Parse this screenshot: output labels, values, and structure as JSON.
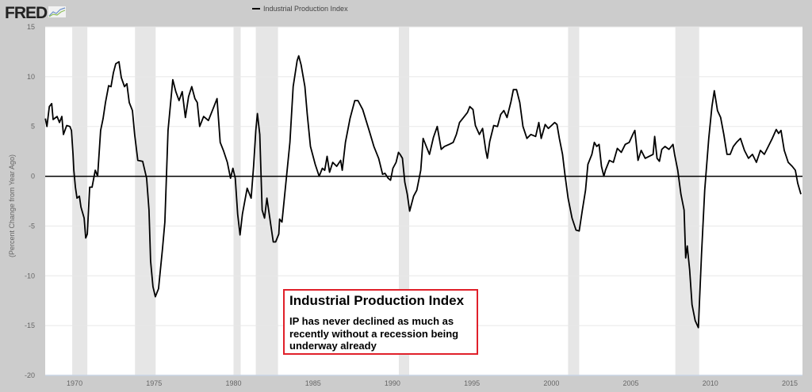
{
  "header": {
    "logo": "FRED",
    "logo_icon": "line-chart-icon"
  },
  "chart_data": {
    "type": "line",
    "title": "",
    "ylabel": "(Percent Change from Year Ago)",
    "xlabel": "",
    "xlim": [
      1968.15,
      2015.8
    ],
    "ylim": [
      -20,
      15
    ],
    "yticks": [
      -20,
      -15,
      -10,
      -5,
      0,
      5,
      10,
      15
    ],
    "xticks": [
      1970,
      1975,
      1980,
      1985,
      1990,
      1995,
      2000,
      2005,
      2010,
      2015
    ],
    "grid": true,
    "legend_placement": "top-center",
    "colors": {
      "line": "#000000",
      "recession": "#e6e6e6",
      "background": "#cccccc",
      "plot": "#ffffff",
      "annotation_border": "#e0202a"
    },
    "recessions": [
      [
        1969.85,
        1970.8
      ],
      [
        1973.8,
        1975.1
      ],
      [
        1980.0,
        1980.45
      ],
      [
        1981.4,
        1982.8
      ],
      [
        1990.4,
        1991.05
      ],
      [
        2001.05,
        2001.75
      ],
      [
        2007.8,
        2009.3
      ]
    ],
    "series": [
      {
        "name": "Industrial Production Index",
        "points": [
          [
            1968.16,
            5.8
          ],
          [
            1968.26,
            5.0
          ],
          [
            1968.41,
            7.0
          ],
          [
            1968.56,
            7.3
          ],
          [
            1968.65,
            5.7
          ],
          [
            1968.9,
            6.0
          ],
          [
            1969.05,
            5.4
          ],
          [
            1969.2,
            6.0
          ],
          [
            1969.3,
            4.2
          ],
          [
            1969.5,
            5.1
          ],
          [
            1969.7,
            5.0
          ],
          [
            1969.8,
            4.6
          ],
          [
            1969.9,
            2.2
          ],
          [
            1969.95,
            0.6
          ],
          [
            1970.05,
            -1.1
          ],
          [
            1970.15,
            -2.2
          ],
          [
            1970.3,
            -2.0
          ],
          [
            1970.4,
            -3.1
          ],
          [
            1970.6,
            -4.2
          ],
          [
            1970.7,
            -6.2
          ],
          [
            1970.8,
            -5.8
          ],
          [
            1970.95,
            -1.1
          ],
          [
            1971.1,
            -1.1
          ],
          [
            1971.3,
            0.6
          ],
          [
            1971.45,
            0
          ],
          [
            1971.64,
            4.6
          ],
          [
            1971.79,
            5.8
          ],
          [
            1971.94,
            7.4
          ],
          [
            1972.14,
            9.1
          ],
          [
            1972.29,
            9.0
          ],
          [
            1972.44,
            10.4
          ],
          [
            1972.59,
            11.3
          ],
          [
            1972.79,
            11.5
          ],
          [
            1972.94,
            9.9
          ],
          [
            1973.14,
            9.0
          ],
          [
            1973.29,
            9.3
          ],
          [
            1973.44,
            7.4
          ],
          [
            1973.64,
            6.6
          ],
          [
            1973.78,
            4.2
          ],
          [
            1973.98,
            1.6
          ],
          [
            1974.28,
            1.5
          ],
          [
            1974.53,
            -0.2
          ],
          [
            1974.68,
            -3.4
          ],
          [
            1974.78,
            -8.5
          ],
          [
            1974.93,
            -11.1
          ],
          [
            1975.08,
            -12.1
          ],
          [
            1975.28,
            -11.3
          ],
          [
            1975.53,
            -7.3
          ],
          [
            1975.68,
            -4.6
          ],
          [
            1975.88,
            4.6
          ],
          [
            1976.18,
            9.7
          ],
          [
            1976.37,
            8.5
          ],
          [
            1976.57,
            7.6
          ],
          [
            1976.77,
            8.5
          ],
          [
            1976.97,
            5.9
          ],
          [
            1977.17,
            8.0
          ],
          [
            1977.37,
            9.0
          ],
          [
            1977.57,
            7.8
          ],
          [
            1977.72,
            7.4
          ],
          [
            1977.87,
            5.0
          ],
          [
            1978.12,
            6.0
          ],
          [
            1978.42,
            5.6
          ],
          [
            1978.77,
            7.0
          ],
          [
            1978.96,
            7.8
          ],
          [
            1979.16,
            3.4
          ],
          [
            1979.36,
            2.6
          ],
          [
            1979.61,
            1.4
          ],
          [
            1979.81,
            -0.2
          ],
          [
            1979.96,
            0.8
          ],
          [
            1980.11,
            -0.2
          ],
          [
            1980.26,
            -3.8
          ],
          [
            1980.41,
            -5.9
          ],
          [
            1980.56,
            -3.8
          ],
          [
            1980.86,
            -1.2
          ],
          [
            1981.11,
            -2.2
          ],
          [
            1981.26,
            1.0
          ],
          [
            1981.4,
            4.6
          ],
          [
            1981.5,
            6.3
          ],
          [
            1981.65,
            4.2
          ],
          [
            1981.8,
            -3.4
          ],
          [
            1981.95,
            -4.2
          ],
          [
            1982.1,
            -2.2
          ],
          [
            1982.5,
            -6.6
          ],
          [
            1982.65,
            -6.6
          ],
          [
            1982.85,
            -5.8
          ],
          [
            1982.9,
            -4.3
          ],
          [
            1983.05,
            -4.6
          ],
          [
            1983.35,
            0.2
          ],
          [
            1983.55,
            3.4
          ],
          [
            1983.75,
            9.0
          ],
          [
            1984.0,
            11.6
          ],
          [
            1984.1,
            12.1
          ],
          [
            1984.25,
            11.2
          ],
          [
            1984.49,
            9.0
          ],
          [
            1984.64,
            6.2
          ],
          [
            1984.84,
            3.0
          ],
          [
            1985.14,
            1.2
          ],
          [
            1985.39,
            0
          ],
          [
            1985.59,
            0.8
          ],
          [
            1985.74,
            0.6
          ],
          [
            1985.89,
            2.0
          ],
          [
            1986.04,
            0.4
          ],
          [
            1986.24,
            1.4
          ],
          [
            1986.49,
            1.0
          ],
          [
            1986.74,
            1.6
          ],
          [
            1986.84,
            0.6
          ],
          [
            1987.04,
            3.4
          ],
          [
            1987.33,
            5.8
          ],
          [
            1987.63,
            7.6
          ],
          [
            1987.83,
            7.6
          ],
          [
            1988.13,
            6.7
          ],
          [
            1988.53,
            4.6
          ],
          [
            1988.83,
            3.0
          ],
          [
            1989.13,
            1.8
          ],
          [
            1989.38,
            0.2
          ],
          [
            1989.53,
            0.3
          ],
          [
            1989.73,
            -0.2
          ],
          [
            1989.88,
            -0.4
          ],
          [
            1990.03,
            0.8
          ],
          [
            1990.23,
            1.4
          ],
          [
            1990.38,
            2.4
          ],
          [
            1990.48,
            2.2
          ],
          [
            1990.63,
            1.8
          ],
          [
            1990.78,
            -0.6
          ],
          [
            1990.93,
            -1.8
          ],
          [
            1991.08,
            -3.5
          ],
          [
            1991.33,
            -2.0
          ],
          [
            1991.53,
            -1.4
          ],
          [
            1991.78,
            0.6
          ],
          [
            1991.93,
            3.8
          ],
          [
            1992.13,
            3.0
          ],
          [
            1992.33,
            2.2
          ],
          [
            1992.58,
            3.9
          ],
          [
            1992.82,
            5.0
          ],
          [
            1993.07,
            2.7
          ],
          [
            1993.27,
            3.0
          ],
          [
            1993.57,
            3.2
          ],
          [
            1993.82,
            3.4
          ],
          [
            1994.02,
            4.2
          ],
          [
            1994.22,
            5.4
          ],
          [
            1994.47,
            5.9
          ],
          [
            1994.72,
            6.4
          ],
          [
            1994.87,
            7.0
          ],
          [
            1995.07,
            6.7
          ],
          [
            1995.22,
            5.1
          ],
          [
            1995.47,
            4.2
          ],
          [
            1995.67,
            4.8
          ],
          [
            1995.87,
            2.6
          ],
          [
            1995.97,
            1.8
          ],
          [
            1996.12,
            3.5
          ],
          [
            1996.37,
            5.1
          ],
          [
            1996.61,
            5.0
          ],
          [
            1996.81,
            6.2
          ],
          [
            1997.01,
            6.6
          ],
          [
            1997.21,
            5.9
          ],
          [
            1997.46,
            7.5
          ],
          [
            1997.61,
            8.7
          ],
          [
            1997.81,
            8.7
          ],
          [
            1998.01,
            7.4
          ],
          [
            1998.21,
            5.0
          ],
          [
            1998.46,
            3.8
          ],
          [
            1998.71,
            4.2
          ],
          [
            1999.01,
            4.0
          ],
          [
            1999.21,
            5.4
          ],
          [
            1999.36,
            3.8
          ],
          [
            1999.61,
            5.2
          ],
          [
            1999.81,
            4.8
          ],
          [
            2000.01,
            5.1
          ],
          [
            2000.21,
            5.4
          ],
          [
            2000.35,
            5.2
          ],
          [
            2000.5,
            3.8
          ],
          [
            2000.7,
            2.2
          ],
          [
            2000.85,
            0.2
          ],
          [
            2001.05,
            -2.2
          ],
          [
            2001.3,
            -4.2
          ],
          [
            2001.55,
            -5.4
          ],
          [
            2001.75,
            -5.5
          ],
          [
            2001.95,
            -3.4
          ],
          [
            2002.15,
            -1.4
          ],
          [
            2002.3,
            1.2
          ],
          [
            2002.55,
            2.2
          ],
          [
            2002.7,
            3.4
          ],
          [
            2002.85,
            3.0
          ],
          [
            2003.0,
            3.2
          ],
          [
            2003.15,
            1.0
          ],
          [
            2003.3,
            0
          ],
          [
            2003.4,
            0.6
          ],
          [
            2003.65,
            1.6
          ],
          [
            2003.9,
            1.4
          ],
          [
            2004.15,
            2.8
          ],
          [
            2004.4,
            2.4
          ],
          [
            2004.65,
            3.2
          ],
          [
            2004.9,
            3.4
          ],
          [
            2005.15,
            4.3
          ],
          [
            2005.25,
            4.6
          ],
          [
            2005.45,
            1.6
          ],
          [
            2005.65,
            2.6
          ],
          [
            2005.9,
            1.8
          ],
          [
            2006.15,
            2.0
          ],
          [
            2006.4,
            2.2
          ],
          [
            2006.5,
            4.0
          ],
          [
            2006.65,
            1.8
          ],
          [
            2006.8,
            1.5
          ],
          [
            2006.95,
            2.7
          ],
          [
            2007.15,
            3.0
          ],
          [
            2007.4,
            2.7
          ],
          [
            2007.65,
            3.2
          ],
          [
            2007.75,
            2.2
          ],
          [
            2007.95,
            0.6
          ],
          [
            2008.15,
            -1.8
          ],
          [
            2008.35,
            -3.4
          ],
          [
            2008.45,
            -8.2
          ],
          [
            2008.55,
            -7.0
          ],
          [
            2008.7,
            -9.4
          ],
          [
            2008.85,
            -12.9
          ],
          [
            2009.05,
            -14.5
          ],
          [
            2009.25,
            -15.2
          ],
          [
            2009.45,
            -7.8
          ],
          [
            2009.65,
            -1.4
          ],
          [
            2009.9,
            3.8
          ],
          [
            2010.1,
            7.0
          ],
          [
            2010.25,
            8.6
          ],
          [
            2010.45,
            6.6
          ],
          [
            2010.65,
            5.9
          ],
          [
            2010.85,
            4.2
          ],
          [
            2011.05,
            2.2
          ],
          [
            2011.25,
            2.2
          ],
          [
            2011.45,
            3.0
          ],
          [
            2011.65,
            3.4
          ],
          [
            2011.9,
            3.8
          ],
          [
            2012.15,
            2.6
          ],
          [
            2012.4,
            1.8
          ],
          [
            2012.65,
            2.2
          ],
          [
            2012.9,
            1.4
          ],
          [
            2013.15,
            2.6
          ],
          [
            2013.4,
            2.2
          ],
          [
            2013.65,
            3.0
          ],
          [
            2013.9,
            3.8
          ],
          [
            2014.15,
            4.7
          ],
          [
            2014.3,
            4.3
          ],
          [
            2014.45,
            4.6
          ],
          [
            2014.65,
            2.6
          ],
          [
            2014.9,
            1.4
          ],
          [
            2015.15,
            1.0
          ],
          [
            2015.35,
            0.6
          ],
          [
            2015.5,
            -0.7
          ],
          [
            2015.7,
            -1.8
          ]
        ]
      }
    ]
  },
  "annotation": {
    "title": "Industrial Production Index",
    "text": "IP has never declined as much as recently without a recession being underway already"
  }
}
